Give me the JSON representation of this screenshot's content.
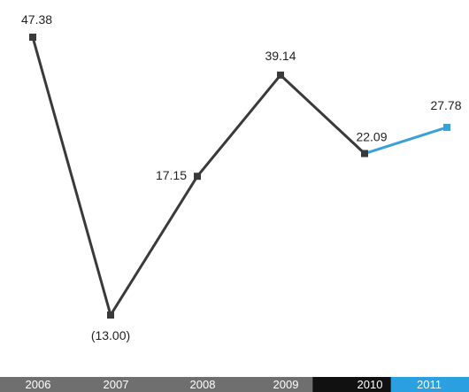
{
  "chart_data": {
    "type": "line",
    "categories": [
      "2006",
      "2007",
      "2008",
      "2009",
      "2010",
      "2011"
    ],
    "values": [
      47.38,
      -13.0,
      17.15,
      39.14,
      22.09,
      27.78
    ],
    "data_labels": [
      "47.38",
      "(13.00)",
      "17.15",
      "39.14",
      "22.09",
      "27.78"
    ],
    "title": "",
    "xlabel": "",
    "ylabel": "",
    "ylim": [
      -13,
      47.38
    ],
    "grid": false,
    "legend": "none",
    "colors": {
      "line_main": "#3a3a3a",
      "line_highlight": "#3aa0d8",
      "year_bar_default": "#6f6f6f",
      "year_bar_2010": "#111111",
      "year_bar_2011": "#2aa0e0",
      "year_text": "#ffffff"
    },
    "highlight_segment_from": "2010",
    "highlight_segment_to": "2011"
  }
}
